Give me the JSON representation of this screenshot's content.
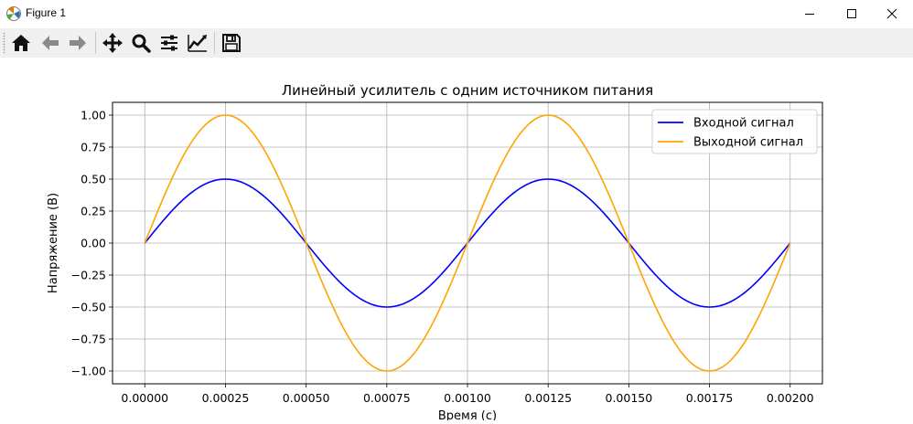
{
  "window": {
    "title": "Figure 1"
  },
  "toolbar": {
    "buttons": [
      "home-icon",
      "back-icon",
      "forward-icon",
      "pan-icon",
      "zoom-icon",
      "subplots-icon",
      "customize-icon",
      "save-icon"
    ]
  },
  "chart_data": {
    "type": "line",
    "title": "Линейный усилитель с одним источником питания",
    "xlabel": "Время (с)",
    "ylabel": "Напряжение (В)",
    "xlim": [
      -0.0001,
      0.0021
    ],
    "ylim": [
      -1.1,
      1.1
    ],
    "xticks": [
      "0.00000",
      "0.00025",
      "0.00050",
      "0.00075",
      "0.00100",
      "0.00125",
      "0.00150",
      "0.00175",
      "0.00200"
    ],
    "yticks": [
      "−1.00",
      "−0.75",
      "−0.50",
      "−0.25",
      "0.00",
      "0.25",
      "0.50",
      "0.75",
      "1.00"
    ],
    "grid": true,
    "legend_position": "top-right",
    "series": [
      {
        "name": "Входной сигнал",
        "color": "#0000ff",
        "amplitude": 0.5,
        "frequency_hz": 1000,
        "x": [
          0,
          0.00025,
          0.0005,
          0.00075,
          0.001,
          0.00125,
          0.0015,
          0.00175,
          0.002
        ],
        "values": [
          0,
          0.5,
          0,
          -0.5,
          0,
          0.5,
          0,
          -0.5,
          0
        ]
      },
      {
        "name": "Выходной сигнал",
        "color": "#ffa500",
        "amplitude": 1.0,
        "frequency_hz": 1000,
        "x": [
          0,
          0.00025,
          0.0005,
          0.00075,
          0.001,
          0.00125,
          0.0015,
          0.00175,
          0.002
        ],
        "values": [
          0,
          1.0,
          0,
          -1.0,
          0,
          1.0,
          0,
          -1.0,
          0
        ]
      }
    ]
  }
}
